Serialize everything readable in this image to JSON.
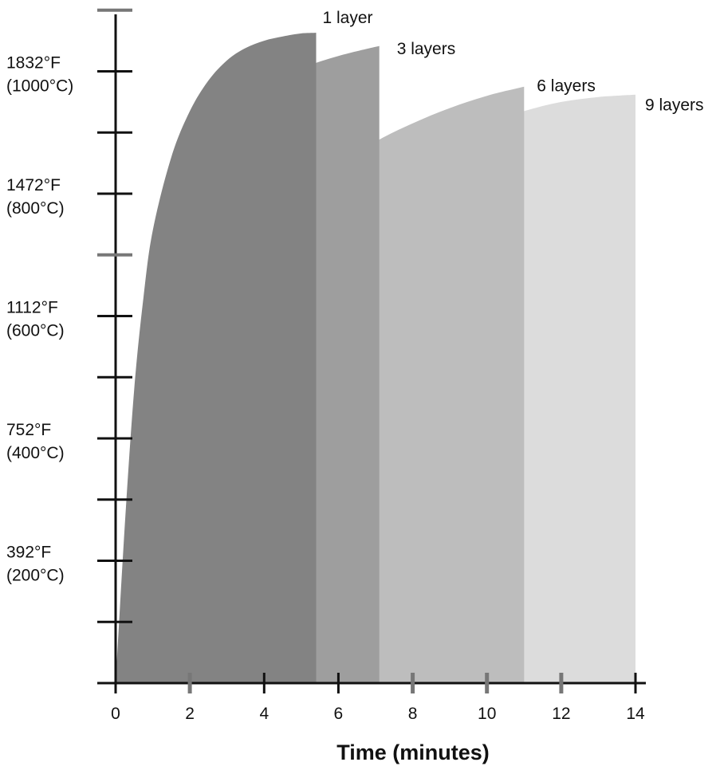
{
  "chart_data": {
    "type": "area",
    "title": "",
    "xlabel": "Time (minutes)",
    "ylabel": "",
    "xlim": [
      0,
      14
    ],
    "ylim": [
      0,
      1100
    ],
    "x_ticks": [
      "0",
      "2",
      "4",
      "6",
      "8",
      "10",
      "12",
      "14"
    ],
    "y_ticks": [
      {
        "value": 200,
        "f_label": "392°F",
        "c_label": "(200°C)"
      },
      {
        "value": 400,
        "f_label": "752°F",
        "c_label": "(400°C)"
      },
      {
        "value": 600,
        "f_label": "1112°F",
        "c_label": "(600°C)"
      },
      {
        "value": 800,
        "f_label": "1472°F",
        "c_label": "(800°C)"
      },
      {
        "value": 1000,
        "f_label": "1832°F",
        "c_label": "(1000°C)"
      }
    ],
    "grid": false,
    "legend": "labels at series ends",
    "series": [
      {
        "name": "9 layers",
        "color": "#dcdcdc",
        "x": [
          0,
          0.5,
          1,
          2,
          3,
          4,
          5,
          6,
          7,
          8,
          9,
          10,
          11,
          12,
          13,
          14
        ],
        "y": [
          0,
          70,
          145,
          285,
          415,
          530,
          630,
          715,
          785,
          840,
          885,
          915,
          935,
          950,
          958,
          962
        ]
      },
      {
        "name": "6 layers",
        "color": "#bdbdbd",
        "x": [
          0,
          0.5,
          1,
          1.5,
          2,
          2.5,
          3,
          4,
          5,
          6,
          7,
          8,
          9,
          10,
          11
        ],
        "y": [
          0,
          130,
          260,
          370,
          460,
          540,
          610,
          715,
          790,
          845,
          885,
          915,
          940,
          960,
          975
        ]
      },
      {
        "name": "3 layers",
        "color": "#9e9e9e",
        "x": [
          0,
          0.25,
          0.5,
          0.75,
          1,
          1.5,
          2,
          2.5,
          3,
          3.5,
          4,
          5,
          6,
          7,
          7.1
        ],
        "y": [
          0,
          195,
          370,
          515,
          625,
          745,
          825,
          880,
          920,
          950,
          975,
          1005,
          1025,
          1040,
          1041
        ]
      },
      {
        "name": "1 layer",
        "color": "#838383",
        "x": [
          0,
          0.25,
          0.5,
          0.75,
          1,
          1.5,
          2,
          2.5,
          3,
          3.5,
          4,
          4.5,
          5,
          5.4
        ],
        "y": [
          0,
          260,
          480,
          630,
          740,
          860,
          935,
          985,
          1018,
          1038,
          1050,
          1057,
          1062,
          1063
        ]
      }
    ]
  }
}
